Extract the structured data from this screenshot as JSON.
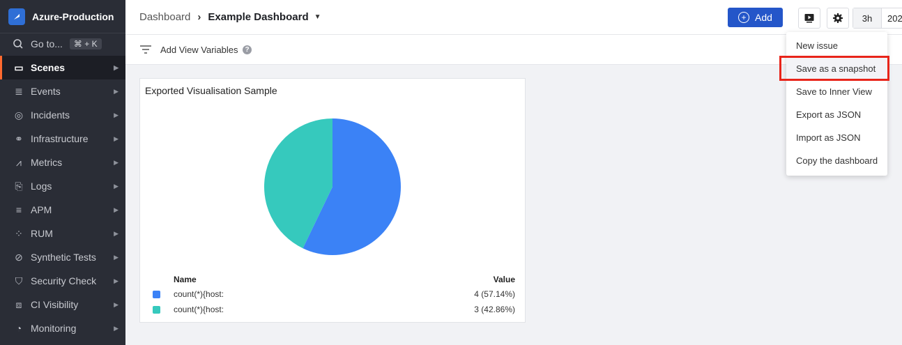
{
  "sidebar": {
    "workspace": "Azure-Production",
    "goto": {
      "label": "Go to...",
      "shortcut": "⌘ + K"
    },
    "items": [
      {
        "label": "Scenes",
        "icon": "scenes-icon",
        "active": true
      },
      {
        "label": "Events",
        "icon": "events-icon"
      },
      {
        "label": "Incidents",
        "icon": "incidents-icon"
      },
      {
        "label": "Infrastructure",
        "icon": "infrastructure-icon"
      },
      {
        "label": "Metrics",
        "icon": "metrics-icon"
      },
      {
        "label": "Logs",
        "icon": "logs-icon"
      },
      {
        "label": "APM",
        "icon": "apm-icon"
      },
      {
        "label": "RUM",
        "icon": "rum-icon"
      },
      {
        "label": "Synthetic Tests",
        "icon": "synthetic-icon"
      },
      {
        "label": "Security Check",
        "icon": "shield-icon"
      },
      {
        "label": "CI Visibility",
        "icon": "ci-icon"
      },
      {
        "label": "Monitoring",
        "icon": "monitoring-icon"
      }
    ]
  },
  "header": {
    "breadcrumb_root": "Dashboard",
    "breadcrumb_current": "Example Dashboard",
    "add_label": "Add",
    "time_range": "3h",
    "time_value": "202"
  },
  "variables": {
    "label": "Add View Variables"
  },
  "panel": {
    "title": "Exported Visualisation Sample",
    "legend_name_header": "Name",
    "legend_value_header": "Value",
    "rows": [
      {
        "name": "count(*){host:",
        "value": "4 (57.14%)",
        "color": "#3b82f6"
      },
      {
        "name": "count(*){host:",
        "value": "3 (42.86%)",
        "color": "#36c9bd"
      }
    ]
  },
  "chart_data": {
    "type": "pie",
    "categories": [
      "count(*){host:",
      "count(*){host:"
    ],
    "values": [
      4,
      3
    ],
    "colors": [
      "#3b82f6",
      "#36c9bd"
    ],
    "title": "Exported Visualisation Sample"
  },
  "menu": {
    "items": [
      "New issue",
      "Save as a snapshot",
      "Save to Inner View",
      "Export as JSON",
      "Import as JSON",
      "Copy the dashboard"
    ],
    "highlighted": "Save as a snapshot"
  }
}
